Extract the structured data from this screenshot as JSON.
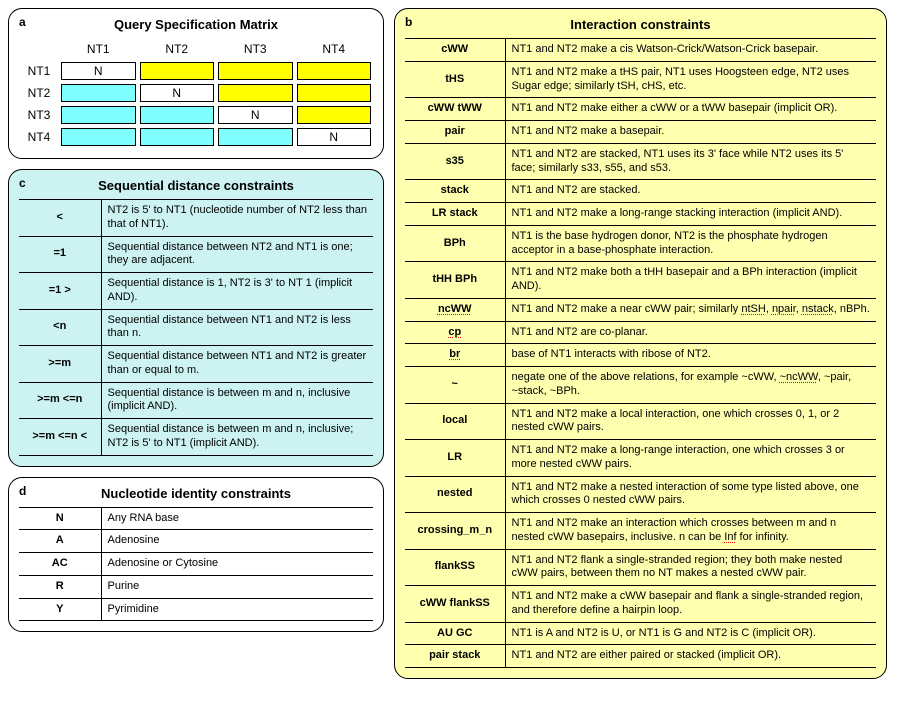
{
  "panelA": {
    "letter": "a",
    "title": "Query Specification Matrix",
    "cols": [
      "NT1",
      "NT2",
      "NT3",
      "NT4"
    ],
    "rows": [
      "NT1",
      "NT2",
      "NT3",
      "NT4"
    ],
    "cells": [
      [
        "N",
        "yellow",
        "yellow",
        "yellow"
      ],
      [
        "cyan",
        "N",
        "yellow",
        "yellow"
      ],
      [
        "cyan",
        "cyan",
        "N",
        "yellow"
      ],
      [
        "cyan",
        "cyan",
        "cyan",
        "N"
      ]
    ],
    "colors": {
      "N_bg": "#ffffff",
      "yellow": "#ffff00",
      "cyan": "#80ffff",
      "border": "#000000"
    }
  },
  "panelB": {
    "letter": "b",
    "title": "Interaction constraints",
    "bg": "#ffffb0",
    "rows": [
      {
        "key": "cWW",
        "desc": "NT1 and NT2 make a cis Watson-Crick/Watson-Crick basepair."
      },
      {
        "key": "tHS",
        "desc": "NT1 and NT2 make a tHS pair, NT1 uses Hoogsteen edge, NT2 uses Sugar edge; similarly tSH, cHS, etc."
      },
      {
        "key": "cWW tWW",
        "desc": "NT1 and NT2 make either a cWW or a tWW basepair (implicit OR)."
      },
      {
        "key": "pair",
        "desc": "NT1 and NT2 make a basepair."
      },
      {
        "key": "s35",
        "desc": "NT1 and NT2 are stacked, NT1 uses its 3' face while NT2 uses its 5' face; similarly s33, s55, and s53."
      },
      {
        "key": "stack",
        "desc": "NT1 and NT2 are stacked."
      },
      {
        "key": "LR stack",
        "desc": "NT1 and NT2 make a long-range stacking interaction (implicit AND)."
      },
      {
        "key": "BPh",
        "desc": "NT1 is the base hydrogen donor, NT2 is the phosphate hydrogen acceptor in a base-phosphate interaction."
      },
      {
        "key": "tHH BPh",
        "desc": "NT1 and NT2 make both a tHH basepair and a BPh interaction (implicit AND)."
      },
      {
        "key": "ncWW",
        "key_style": "dotted",
        "desc": "NT1 and NT2 make a near cWW pair; similarly ",
        "desc_extra": [
          "ntSH",
          ", ",
          "npair",
          ", ",
          "nstack",
          ", nBPh."
        ]
      },
      {
        "key": "cp",
        "key_style": "dotted",
        "desc": "NT1 and NT2 are co-planar."
      },
      {
        "key": "br",
        "key_style": "dotted",
        "desc": "base of NT1 interacts with ribose of NT2."
      },
      {
        "key": "~",
        "desc": "negate one of the above relations, for example ~cWW, ",
        "desc_extra": [
          "~ncWW",
          ", ~pair, ~stack, ~BPh."
        ]
      },
      {
        "key": "local",
        "desc": "NT1 and NT2 make a local interaction, one which crosses 0, 1, or 2 nested cWW pairs."
      },
      {
        "key": "LR",
        "desc": "NT1 and NT2 make a long-range interaction, one which crosses 3 or more nested cWW pairs."
      },
      {
        "key": "nested",
        "desc": "NT1 and NT2 make a nested interaction of some type listed above, one which crosses 0 nested cWW pairs."
      },
      {
        "key": "crossing_m_n",
        "desc": "NT1 and NT2 make an interaction which crosses between m and n nested cWW basepairs, inclusive.  n can be ",
        "desc_extra": [
          "Inf",
          " for infinity."
        ]
      },
      {
        "key": "flankSS",
        "desc": "NT1 and NT2 flank a single-stranded region; they both make nested cWW pairs, between them no NT makes a nested cWW pair."
      },
      {
        "key": "cWW flankSS",
        "desc": "NT1 and NT2 make a cWW basepair and flank a single-stranded region, and therefore define a hairpin loop."
      },
      {
        "key": "AU GC",
        "desc": "NT1 is A and NT2 is U, or NT1 is G and NT2 is C (implicit OR)."
      },
      {
        "key": "pair stack",
        "desc": "NT1 and NT2 are either paired or stacked (implicit OR)."
      }
    ]
  },
  "panelC": {
    "letter": "c",
    "title": "Sequential distance constraints",
    "bg": "#ccf2f2",
    "rows": [
      {
        "key": "<",
        "desc": "NT2 is 5' to NT1 (nucleotide number of NT2 less than that of NT1)."
      },
      {
        "key": "=1",
        "desc": "Sequential distance between NT2 and NT1 is one; they are adjacent."
      },
      {
        "key": "=1 >",
        "desc": "Sequential distance is 1, NT2 is 3' to NT 1 (implicit AND)."
      },
      {
        "key": "<n",
        "desc": "Sequential distance between NT1 and NT2 is less than n."
      },
      {
        "key": ">=m",
        "desc": "Sequential distance between NT1 and NT2 is greater than or equal to m."
      },
      {
        "key": ">=m <=n",
        "desc": "Sequential distance is between m and n, inclusive (implicit AND)."
      },
      {
        "key": ">=m <=n <",
        "desc": "Sequential distance is between m and n, inclusive; NT2 is 5' to NT1 (implicit AND)."
      }
    ]
  },
  "panelD": {
    "letter": "d",
    "title": "Nucleotide identity constraints",
    "bg": "#ffffff",
    "rows": [
      {
        "key": "N",
        "desc": "Any RNA base"
      },
      {
        "key": "A",
        "desc": "Adenosine"
      },
      {
        "key": "AC",
        "desc": "Adenosine or Cytosine"
      },
      {
        "key": "R",
        "desc": "Purine"
      },
      {
        "key": "Y",
        "desc": "Pyrimidine"
      }
    ]
  }
}
